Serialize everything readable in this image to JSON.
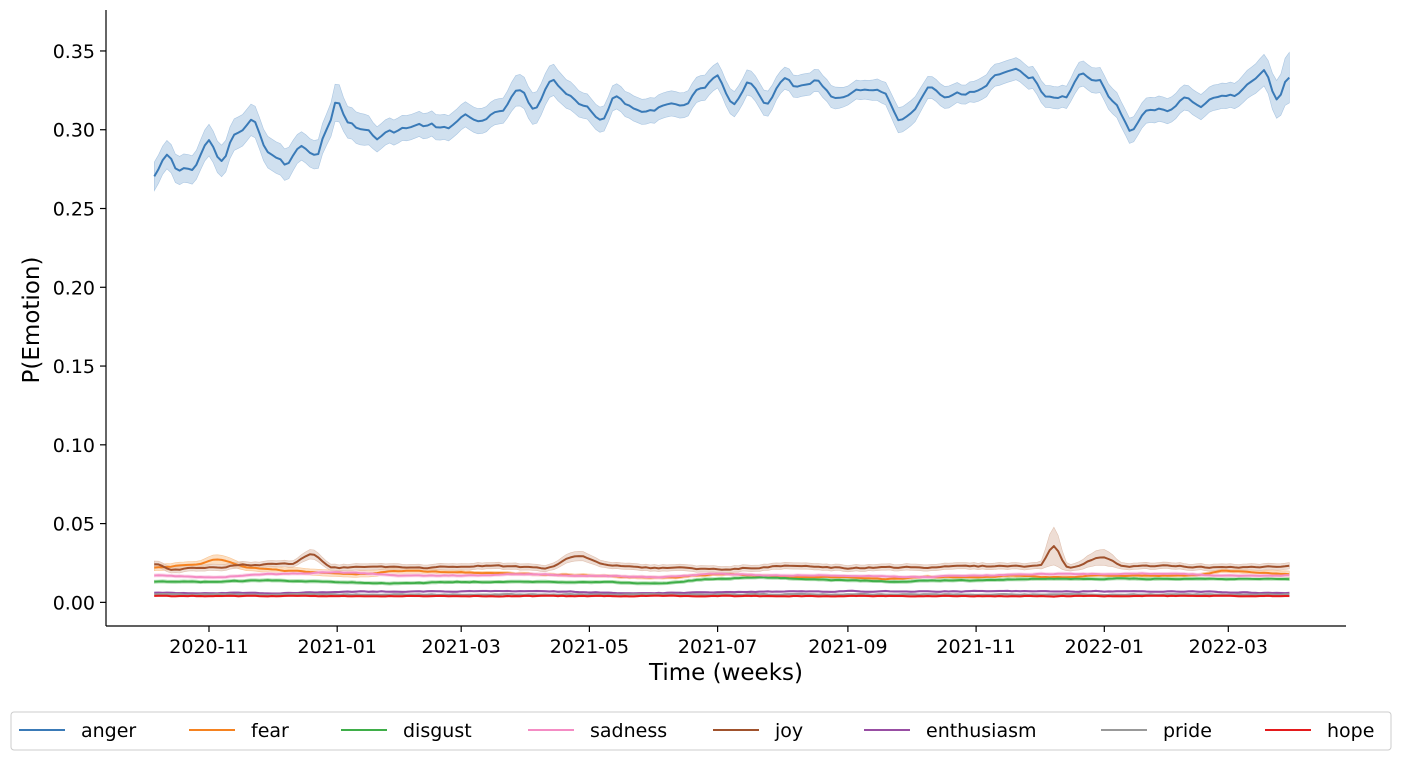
{
  "chart_data": {
    "type": "line",
    "xlabel": "Time (weeks)",
    "ylabel": "P(Emotion)",
    "x_start": "2020-10-06",
    "x_end": "2022-03-30",
    "xlim": [
      "2020-09-13",
      "2022-04-26"
    ],
    "ylim": [
      -0.015,
      0.376
    ],
    "yticks": [
      0.0,
      0.05,
      0.1,
      0.15,
      0.2,
      0.25,
      0.3,
      0.35
    ],
    "ytick_labels": [
      "0.00",
      "0.05",
      "0.10",
      "0.15",
      "0.20",
      "0.25",
      "0.30",
      "0.35"
    ],
    "xticks": [
      "2020-11-01",
      "2021-01-01",
      "2021-03-01",
      "2021-05-01",
      "2021-07-01",
      "2021-09-01",
      "2021-11-01",
      "2022-01-01",
      "2022-03-01"
    ],
    "xtick_labels": [
      "2020-11",
      "2021-01",
      "2021-03",
      "2021-05",
      "2021-07",
      "2021-09",
      "2021-11",
      "2022-01",
      "2022-03"
    ],
    "legend_position": "bottom",
    "grid": false,
    "series": [
      {
        "name": "anger",
        "color": "#3a7ab7",
        "band_color": "#aac6e2",
        "dates": [
          "2020-10-06",
          "2020-10-12",
          "2020-10-17",
          "2020-10-24",
          "2020-11-01",
          "2020-11-07",
          "2020-11-14",
          "2020-11-22",
          "2020-11-30",
          "2020-12-08",
          "2020-12-15",
          "2020-12-22",
          "2020-12-27",
          "2021-01-01",
          "2021-01-06",
          "2021-01-13",
          "2021-01-20",
          "2021-01-27",
          "2021-02-04",
          "2021-02-13",
          "2021-02-23",
          "2021-03-04",
          "2021-03-12",
          "2021-03-20",
          "2021-03-29",
          "2021-04-05",
          "2021-04-13",
          "2021-04-21",
          "2021-04-29",
          "2021-05-06",
          "2021-05-14",
          "2021-05-22",
          "2021-05-30",
          "2021-06-07",
          "2021-06-15",
          "2021-06-23",
          "2021-07-01",
          "2021-07-08",
          "2021-07-16",
          "2021-07-24",
          "2021-08-01",
          "2021-08-09",
          "2021-08-17",
          "2021-08-25",
          "2021-09-01",
          "2021-09-09",
          "2021-09-17",
          "2021-09-26",
          "2021-10-02",
          "2021-10-10",
          "2021-10-18",
          "2021-10-26",
          "2021-11-03",
          "2021-11-11",
          "2021-11-19",
          "2021-11-27",
          "2021-12-05",
          "2021-12-13",
          "2021-12-21",
          "2021-12-29",
          "2022-01-06",
          "2022-01-14",
          "2022-01-22",
          "2022-01-30",
          "2022-02-07",
          "2022-02-15",
          "2022-02-23",
          "2022-03-03",
          "2022-03-11",
          "2022-03-18",
          "2022-03-24",
          "2022-03-30"
        ],
        "values": [
          0.27,
          0.283,
          0.274,
          0.276,
          0.293,
          0.279,
          0.297,
          0.305,
          0.285,
          0.278,
          0.29,
          0.285,
          0.3,
          0.32,
          0.307,
          0.301,
          0.295,
          0.299,
          0.302,
          0.303,
          0.3,
          0.309,
          0.305,
          0.312,
          0.325,
          0.311,
          0.333,
          0.322,
          0.317,
          0.305,
          0.322,
          0.315,
          0.312,
          0.318,
          0.316,
          0.327,
          0.334,
          0.316,
          0.331,
          0.318,
          0.333,
          0.326,
          0.331,
          0.322,
          0.324,
          0.326,
          0.325,
          0.306,
          0.312,
          0.326,
          0.318,
          0.322,
          0.325,
          0.333,
          0.337,
          0.334,
          0.319,
          0.32,
          0.334,
          0.331,
          0.316,
          0.299,
          0.313,
          0.312,
          0.32,
          0.315,
          0.322,
          0.321,
          0.33,
          0.337,
          0.32,
          0.333
        ],
        "band": [
          0.009,
          0.009,
          0.009,
          0.009,
          0.01,
          0.01,
          0.01,
          0.01,
          0.01,
          0.01,
          0.009,
          0.009,
          0.01,
          0.012,
          0.01,
          0.01,
          0.008,
          0.008,
          0.008,
          0.008,
          0.008,
          0.008,
          0.008,
          0.008,
          0.01,
          0.01,
          0.01,
          0.009,
          0.008,
          0.008,
          0.008,
          0.008,
          0.008,
          0.008,
          0.008,
          0.008,
          0.008,
          0.008,
          0.008,
          0.008,
          0.007,
          0.007,
          0.007,
          0.007,
          0.006,
          0.006,
          0.007,
          0.008,
          0.008,
          0.007,
          0.007,
          0.006,
          0.007,
          0.007,
          0.007,
          0.007,
          0.007,
          0.007,
          0.008,
          0.008,
          0.008,
          0.008,
          0.008,
          0.008,
          0.008,
          0.008,
          0.008,
          0.008,
          0.009,
          0.01,
          0.012,
          0.016
        ]
      },
      {
        "name": "fear",
        "color": "#f58220",
        "band_color": "#f9c591",
        "dates": [
          "2020-10-06",
          "2020-10-25",
          "2020-11-05",
          "2020-11-20",
          "2020-12-10",
          "2020-12-25",
          "2021-01-10",
          "2021-02-01",
          "2021-03-01",
          "2021-04-01",
          "2021-05-01",
          "2021-05-20",
          "2021-06-10",
          "2021-07-01",
          "2021-07-20",
          "2021-08-10",
          "2021-09-01",
          "2021-09-20",
          "2021-10-10",
          "2021-11-01",
          "2021-11-20",
          "2021-12-10",
          "2022-01-01",
          "2022-01-20",
          "2022-02-10",
          "2022-03-01",
          "2022-03-30"
        ],
        "values": [
          0.022,
          0.024,
          0.027,
          0.022,
          0.02,
          0.019,
          0.018,
          0.02,
          0.019,
          0.018,
          0.017,
          0.016,
          0.016,
          0.018,
          0.017,
          0.016,
          0.016,
          0.015,
          0.016,
          0.016,
          0.017,
          0.016,
          0.017,
          0.017,
          0.017,
          0.02,
          0.018
        ],
        "band": [
          0.002,
          0.002,
          0.003,
          0.002,
          0.002,
          0.002,
          0.002,
          0.002,
          0.001,
          0.001,
          0.001,
          0.001,
          0.001,
          0.001,
          0.001,
          0.001,
          0.001,
          0.001,
          0.001,
          0.001,
          0.001,
          0.001,
          0.001,
          0.001,
          0.001,
          0.001,
          0.002
        ]
      },
      {
        "name": "disgust",
        "color": "#3fae49",
        "band_color": "#a8dba9",
        "dates": [
          "2020-10-06",
          "2020-11-01",
          "2020-12-01",
          "2021-01-01",
          "2021-02-01",
          "2021-03-01",
          "2021-04-01",
          "2021-05-01",
          "2021-06-01",
          "2021-07-01",
          "2021-07-20",
          "2021-08-10",
          "2021-09-01",
          "2021-09-25",
          "2021-10-10",
          "2021-11-01",
          "2021-12-01",
          "2022-01-01",
          "2022-02-01",
          "2022-03-01",
          "2022-03-30"
        ],
        "values": [
          0.013,
          0.013,
          0.014,
          0.013,
          0.012,
          0.013,
          0.013,
          0.013,
          0.012,
          0.015,
          0.016,
          0.015,
          0.014,
          0.013,
          0.014,
          0.014,
          0.015,
          0.015,
          0.015,
          0.015,
          0.015
        ],
        "band": [
          0.001,
          0.001,
          0.001,
          0.001,
          0.001,
          0.001,
          0.001,
          0.001,
          0.001,
          0.001,
          0.001,
          0.001,
          0.001,
          0.001,
          0.001,
          0.001,
          0.001,
          0.001,
          0.001,
          0.001,
          0.001
        ]
      },
      {
        "name": "sadness",
        "color": "#f48cc4",
        "band_color": "#fbd3e8",
        "dates": [
          "2020-10-06",
          "2020-11-01",
          "2020-12-01",
          "2021-01-01",
          "2021-02-01",
          "2021-03-01",
          "2021-04-01",
          "2021-05-01",
          "2021-06-01",
          "2021-07-01",
          "2021-08-01",
          "2021-09-01",
          "2021-10-01",
          "2021-11-01",
          "2021-12-01",
          "2022-01-01",
          "2022-02-01",
          "2022-03-01",
          "2022-03-30"
        ],
        "values": [
          0.017,
          0.016,
          0.018,
          0.019,
          0.017,
          0.017,
          0.018,
          0.017,
          0.016,
          0.018,
          0.017,
          0.017,
          0.016,
          0.017,
          0.018,
          0.018,
          0.018,
          0.017,
          0.017
        ],
        "band": [
          0.001,
          0.001,
          0.001,
          0.001,
          0.001,
          0.001,
          0.001,
          0.001,
          0.001,
          0.001,
          0.001,
          0.001,
          0.001,
          0.001,
          0.001,
          0.001,
          0.001,
          0.001,
          0.001
        ]
      },
      {
        "name": "joy",
        "color": "#a0522d",
        "band_color": "#e0c1b0",
        "dates": [
          "2020-10-06",
          "2020-10-15",
          "2020-11-01",
          "2020-11-20",
          "2020-12-10",
          "2020-12-20",
          "2020-12-30",
          "2021-01-15",
          "2021-02-10",
          "2021-03-10",
          "2021-04-10",
          "2021-04-25",
          "2021-05-10",
          "2021-06-01",
          "2021-07-01",
          "2021-08-01",
          "2021-09-01",
          "2021-10-01",
          "2021-11-01",
          "2021-12-01",
          "2021-12-08",
          "2021-12-15",
          "2022-01-01",
          "2022-01-10",
          "2022-02-01",
          "2022-03-01",
          "2022-03-30"
        ],
        "values": [
          0.024,
          0.021,
          0.022,
          0.024,
          0.024,
          0.031,
          0.022,
          0.022,
          0.022,
          0.023,
          0.022,
          0.03,
          0.024,
          0.022,
          0.021,
          0.023,
          0.022,
          0.022,
          0.023,
          0.023,
          0.035,
          0.022,
          0.029,
          0.023,
          0.023,
          0.022,
          0.023
        ],
        "band": [
          0.002,
          0.002,
          0.002,
          0.002,
          0.002,
          0.003,
          0.002,
          0.002,
          0.002,
          0.002,
          0.002,
          0.003,
          0.002,
          0.002,
          0.002,
          0.002,
          0.002,
          0.002,
          0.002,
          0.002,
          0.012,
          0.002,
          0.005,
          0.002,
          0.002,
          0.002,
          0.002
        ]
      },
      {
        "name": "enthusiasm",
        "color": "#984ea3",
        "band_color": "#d6bcdb",
        "dates": [
          "2020-10-06",
          "2020-12-01",
          "2021-02-01",
          "2021-04-01",
          "2021-06-01",
          "2021-08-01",
          "2021-10-01",
          "2021-12-01",
          "2022-02-01",
          "2022-03-30"
        ],
        "values": [
          0.006,
          0.006,
          0.007,
          0.007,
          0.006,
          0.007,
          0.007,
          0.007,
          0.007,
          0.006
        ],
        "band": [
          0.0005,
          0.0005,
          0.0005,
          0.0005,
          0.0005,
          0.0005,
          0.0005,
          0.0005,
          0.0005,
          0.0005
        ]
      },
      {
        "name": "pride",
        "color": "#999999",
        "band_color": "#d9d9d9",
        "dates": [
          "2020-10-06",
          "2020-12-01",
          "2021-02-01",
          "2021-04-01",
          "2021-06-01",
          "2021-08-01",
          "2021-10-01",
          "2021-12-01",
          "2022-02-01",
          "2022-03-30"
        ],
        "values": [
          0.005,
          0.005,
          0.005,
          0.005,
          0.005,
          0.005,
          0.005,
          0.005,
          0.005,
          0.005
        ],
        "band": [
          0.0005,
          0.0005,
          0.0005,
          0.0005,
          0.0005,
          0.0005,
          0.0005,
          0.0005,
          0.0005,
          0.0005
        ]
      },
      {
        "name": "hope",
        "color": "#e41a1c",
        "band_color": "#f4a6a7",
        "dates": [
          "2020-10-06",
          "2020-12-01",
          "2021-02-01",
          "2021-04-01",
          "2021-06-01",
          "2021-08-01",
          "2021-10-01",
          "2021-12-01",
          "2022-02-01",
          "2022-03-30"
        ],
        "values": [
          0.004,
          0.004,
          0.004,
          0.004,
          0.004,
          0.004,
          0.004,
          0.004,
          0.004,
          0.004
        ],
        "band": [
          0.0005,
          0.0005,
          0.0005,
          0.0005,
          0.0005,
          0.0005,
          0.0005,
          0.0005,
          0.0005,
          0.0005
        ]
      }
    ]
  }
}
